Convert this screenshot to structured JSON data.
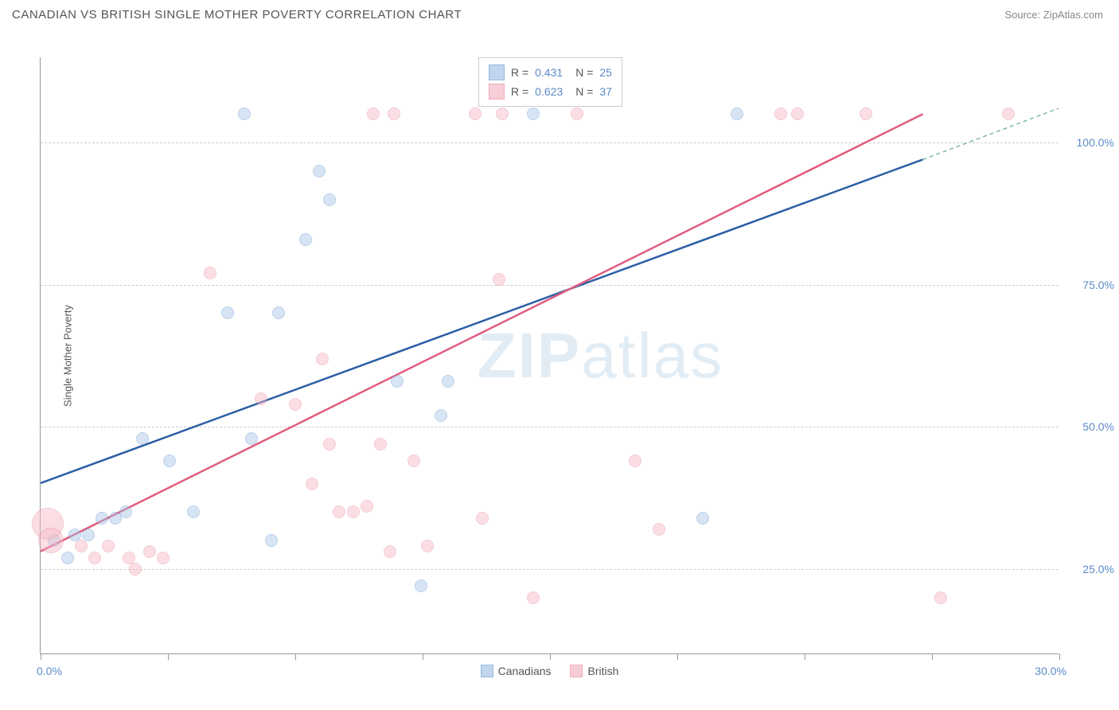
{
  "header": {
    "title": "CANADIAN VS BRITISH SINGLE MOTHER POVERTY CORRELATION CHART",
    "source": "Source: ZipAtlas.com"
  },
  "chart": {
    "type": "scatter",
    "y_axis_title": "Single Mother Poverty",
    "watermark_bold": "ZIP",
    "watermark_light": "atlas",
    "background_color": "#ffffff",
    "grid_color": "#cccccc",
    "axis_color": "#999999",
    "label_color": "#5b8bc7",
    "text_color": "#555555",
    "xlim": [
      0,
      30
    ],
    "ylim": [
      10,
      115
    ],
    "x_labels": {
      "start": "0.0%",
      "end": "30.0%"
    },
    "x_ticks": [
      0,
      3.75,
      7.5,
      11.25,
      15,
      18.75,
      22.5,
      26.25,
      30
    ],
    "y_gridlines": [
      {
        "value": 25,
        "label": "25.0%"
      },
      {
        "value": 50,
        "label": "50.0%"
      },
      {
        "value": 75,
        "label": "75.0%"
      },
      {
        "value": 100,
        "label": "100.0%"
      }
    ],
    "series": [
      {
        "name": "Canadians",
        "fill_color": "#a8c5e8",
        "stroke_color": "#6b9bd1",
        "fill_opacity": 0.45,
        "line_color": "#2c5fa5",
        "line_dash_color": "#7fb8a8",
        "marker_radius": 8,
        "R": "0.431",
        "N": "25",
        "trend": {
          "x1": 0,
          "y1": 40,
          "x2_solid": 26,
          "y2_solid": 97,
          "x2": 30,
          "y2": 106
        },
        "points": [
          {
            "x": 0.4,
            "y": 30,
            "r": 8
          },
          {
            "x": 0.8,
            "y": 27,
            "r": 8
          },
          {
            "x": 1.0,
            "y": 31,
            "r": 8
          },
          {
            "x": 1.4,
            "y": 31,
            "r": 8
          },
          {
            "x": 1.8,
            "y": 34,
            "r": 8
          },
          {
            "x": 2.2,
            "y": 34,
            "r": 8
          },
          {
            "x": 2.5,
            "y": 35,
            "r": 8
          },
          {
            "x": 3.0,
            "y": 48,
            "r": 8
          },
          {
            "x": 3.8,
            "y": 44,
            "r": 8
          },
          {
            "x": 4.5,
            "y": 35,
            "r": 8
          },
          {
            "x": 5.5,
            "y": 70,
            "r": 8
          },
          {
            "x": 6.0,
            "y": 105,
            "r": 8
          },
          {
            "x": 6.2,
            "y": 48,
            "r": 8
          },
          {
            "x": 6.8,
            "y": 30,
            "r": 8
          },
          {
            "x": 7.0,
            "y": 70,
            "r": 8
          },
          {
            "x": 7.8,
            "y": 83,
            "r": 8
          },
          {
            "x": 8.2,
            "y": 95,
            "r": 8
          },
          {
            "x": 8.5,
            "y": 90,
            "r": 8
          },
          {
            "x": 10.5,
            "y": 58,
            "r": 8
          },
          {
            "x": 11.2,
            "y": 22,
            "r": 8
          },
          {
            "x": 11.8,
            "y": 52,
            "r": 8
          },
          {
            "x": 12.0,
            "y": 58,
            "r": 8
          },
          {
            "x": 14.5,
            "y": 105,
            "r": 8
          },
          {
            "x": 19.5,
            "y": 34,
            "r": 8
          },
          {
            "x": 20.5,
            "y": 105,
            "r": 8
          }
        ]
      },
      {
        "name": "British",
        "fill_color": "#f5b8c5",
        "stroke_color": "#e88aa0",
        "fill_opacity": 0.45,
        "line_color": "#e05c7e",
        "marker_radius": 8,
        "R": "0.623",
        "N": "37",
        "trend": {
          "x1": 0,
          "y1": 28,
          "x2_solid": 26,
          "y2_solid": 105,
          "x2": 26,
          "y2": 105
        },
        "points": [
          {
            "x": 0.2,
            "y": 33,
            "r": 20
          },
          {
            "x": 0.3,
            "y": 30,
            "r": 16
          },
          {
            "x": 1.2,
            "y": 29,
            "r": 8
          },
          {
            "x": 1.6,
            "y": 27,
            "r": 8
          },
          {
            "x": 2.0,
            "y": 29,
            "r": 8
          },
          {
            "x": 2.6,
            "y": 27,
            "r": 8
          },
          {
            "x": 2.8,
            "y": 25,
            "r": 8
          },
          {
            "x": 3.2,
            "y": 28,
            "r": 8
          },
          {
            "x": 3.6,
            "y": 27,
            "r": 8
          },
          {
            "x": 5.0,
            "y": 77,
            "r": 8
          },
          {
            "x": 6.5,
            "y": 55,
            "r": 8
          },
          {
            "x": 7.5,
            "y": 54,
            "r": 8
          },
          {
            "x": 8.0,
            "y": 40,
            "r": 8
          },
          {
            "x": 8.3,
            "y": 62,
            "r": 8
          },
          {
            "x": 8.5,
            "y": 47,
            "r": 8
          },
          {
            "x": 8.8,
            "y": 35,
            "r": 8
          },
          {
            "x": 9.2,
            "y": 35,
            "r": 8
          },
          {
            "x": 9.6,
            "y": 36,
            "r": 8
          },
          {
            "x": 9.8,
            "y": 105,
            "r": 8
          },
          {
            "x": 10.0,
            "y": 47,
            "r": 8
          },
          {
            "x": 10.3,
            "y": 28,
            "r": 8
          },
          {
            "x": 10.4,
            "y": 105,
            "r": 8
          },
          {
            "x": 11.0,
            "y": 44,
            "r": 8
          },
          {
            "x": 11.4,
            "y": 29,
            "r": 8
          },
          {
            "x": 12.8,
            "y": 105,
            "r": 8
          },
          {
            "x": 13.0,
            "y": 34,
            "r": 8
          },
          {
            "x": 13.5,
            "y": 76,
            "r": 8
          },
          {
            "x": 13.6,
            "y": 105,
            "r": 8
          },
          {
            "x": 14.5,
            "y": 20,
            "r": 8
          },
          {
            "x": 15.8,
            "y": 105,
            "r": 8
          },
          {
            "x": 17.5,
            "y": 44,
            "r": 8
          },
          {
            "x": 18.2,
            "y": 32,
            "r": 8
          },
          {
            "x": 21.8,
            "y": 105,
            "r": 8
          },
          {
            "x": 22.3,
            "y": 105,
            "r": 8
          },
          {
            "x": 24.3,
            "y": 105,
            "r": 8
          },
          {
            "x": 26.5,
            "y": 20,
            "r": 8
          },
          {
            "x": 28.5,
            "y": 105,
            "r": 8
          }
        ]
      }
    ],
    "legend_labels": {
      "R_prefix": "R =",
      "N_prefix": "N ="
    }
  }
}
